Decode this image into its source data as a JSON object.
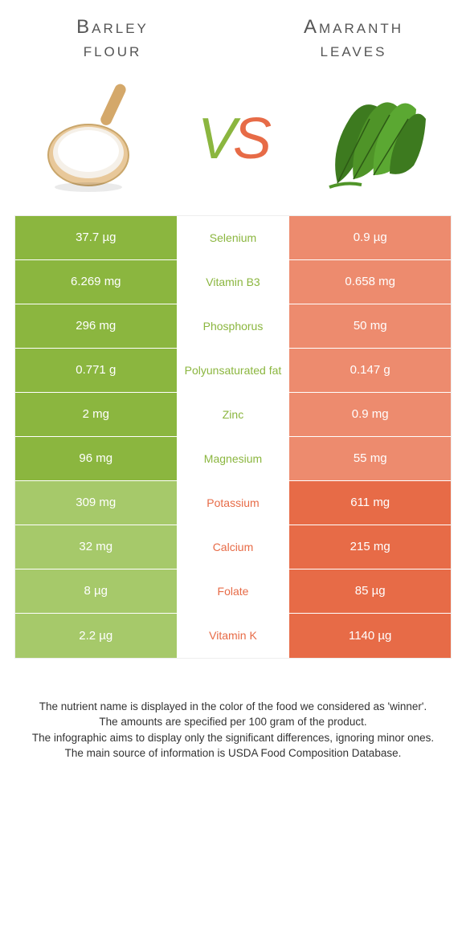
{
  "header": {
    "left_title": "Barley\nflour",
    "right_title": "Amaranth\nleaves"
  },
  "colors": {
    "left": "#8bb63f",
    "right": "#e76b47",
    "left_light": "#a6c96a",
    "right_light": "#ed8b6e",
    "text": "#555555",
    "footer_text": "#333333"
  },
  "vs": {
    "v": "V",
    "s": "S"
  },
  "rows": [
    {
      "left": "37.7 µg",
      "mid": "Selenium",
      "right": "0.9 µg",
      "winner": "left"
    },
    {
      "left": "6.269 mg",
      "mid": "Vitamin B3",
      "right": "0.658 mg",
      "winner": "left"
    },
    {
      "left": "296 mg",
      "mid": "Phosphorus",
      "right": "50 mg",
      "winner": "left"
    },
    {
      "left": "0.771 g",
      "mid": "Polyunsaturated fat",
      "right": "0.147 g",
      "winner": "left"
    },
    {
      "left": "2 mg",
      "mid": "Zinc",
      "right": "0.9 mg",
      "winner": "left"
    },
    {
      "left": "96 mg",
      "mid": "Magnesium",
      "right": "55 mg",
      "winner": "left"
    },
    {
      "left": "309 mg",
      "mid": "Potassium",
      "right": "611 mg",
      "winner": "right"
    },
    {
      "left": "32 mg",
      "mid": "Calcium",
      "right": "215 mg",
      "winner": "right"
    },
    {
      "left": "8 µg",
      "mid": "Folate",
      "right": "85 µg",
      "winner": "right"
    },
    {
      "left": "2.2 µg",
      "mid": "Vitamin K",
      "right": "1140 µg",
      "winner": "right"
    }
  ],
  "footer": {
    "line1": "The nutrient name is displayed in the color of the food we considered as 'winner'.",
    "line2": "The amounts are specified per 100 gram of the product.",
    "line3": "The infographic aims to display only the significant differences, ignoring minor ones.",
    "line4": "The main source of information is USDA Food Composition Database."
  }
}
